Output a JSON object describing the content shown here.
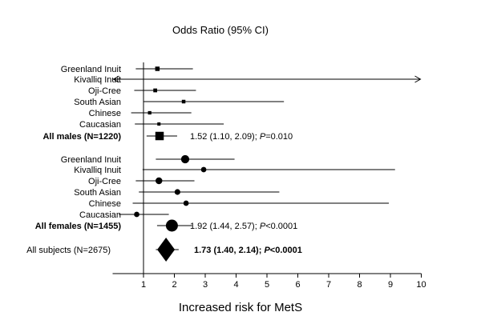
{
  "chart_data": {
    "type": "forest",
    "title": "Odds Ratio (95% CI)",
    "xlabel": "Increased risk for MetS",
    "xlim": [
      0,
      10
    ],
    "reference_line": 1,
    "x_ticks": [
      1,
      2,
      3,
      4,
      5,
      6,
      7,
      8,
      9,
      10
    ],
    "colors": {
      "marks": "#000000",
      "background": "#ffffff"
    },
    "rows": [
      {
        "label": "Greenland Inuit",
        "or": 1.45,
        "lo": 0.75,
        "hi": 2.6,
        "marker": "square",
        "weight": 1,
        "bold": false
      },
      {
        "label": "Kivalliq Inuit",
        "or": null,
        "lo": 0,
        "hi": 10,
        "marker": "none",
        "weight": 0,
        "bold": false,
        "arrows": "both"
      },
      {
        "label": "Oji-Cree",
        "or": 1.38,
        "lo": 0.7,
        "hi": 2.7,
        "marker": "square",
        "weight": 0.7,
        "bold": false
      },
      {
        "label": "South Asian",
        "or": 2.3,
        "lo": 1.0,
        "hi": 5.55,
        "marker": "square",
        "weight": 0.6,
        "bold": false
      },
      {
        "label": "Chinese",
        "or": 1.2,
        "lo": 0.6,
        "hi": 2.55,
        "marker": "square",
        "weight": 0.5,
        "bold": false
      },
      {
        "label": "Caucasian",
        "or": 1.5,
        "lo": 0.72,
        "hi": 3.6,
        "marker": "square",
        "weight": 0.4,
        "bold": false
      },
      {
        "label": "All males (N=1220)",
        "or": 1.52,
        "lo": 1.1,
        "hi": 2.09,
        "marker": "square",
        "weight": 3,
        "bold": true,
        "annotation": "1.52 (1.10, 2.09); ",
        "p_label": "P",
        "p_value": "=0.010"
      },
      {
        "label": "Greenland Inuit",
        "or": 2.35,
        "lo": 1.4,
        "hi": 3.95,
        "marker": "circle",
        "weight": 1.6,
        "bold": false
      },
      {
        "label": "Kivalliq Inuit",
        "or": 2.95,
        "lo": 0.97,
        "hi": 9.15,
        "marker": "circle",
        "weight": 0.8,
        "bold": false
      },
      {
        "label": "Oji-Cree",
        "or": 1.5,
        "lo": 0.75,
        "hi": 2.65,
        "marker": "circle",
        "weight": 1.2,
        "bold": false
      },
      {
        "label": "South Asian",
        "or": 2.1,
        "lo": 0.85,
        "hi": 5.4,
        "marker": "circle",
        "weight": 0.9,
        "bold": false
      },
      {
        "label": "Chinese",
        "or": 2.38,
        "lo": 0.65,
        "hi": 8.95,
        "marker": "circle",
        "weight": 0.8,
        "bold": false
      },
      {
        "label": "Caucasian",
        "or": 0.78,
        "lo": 0.2,
        "hi": 1.82,
        "marker": "circle",
        "weight": 0.8,
        "bold": false
      },
      {
        "label": "All females (N=1455)",
        "or": 1.92,
        "lo": 1.44,
        "hi": 2.57,
        "marker": "circle",
        "weight": 3,
        "bold": true,
        "annotation": "1.92 (1.44, 2.57); ",
        "p_label": "P",
        "p_value": "<0.0001"
      },
      {
        "label": "All subjects (N=2675)",
        "or": 1.73,
        "lo": 1.4,
        "hi": 2.14,
        "marker": "diamond",
        "weight": 3,
        "bold": false,
        "annotation": "1.73 (1.40, 2.14); ",
        "p_label": "P",
        "p_value": "<0.0001",
        "annotation_bold": true
      }
    ]
  }
}
